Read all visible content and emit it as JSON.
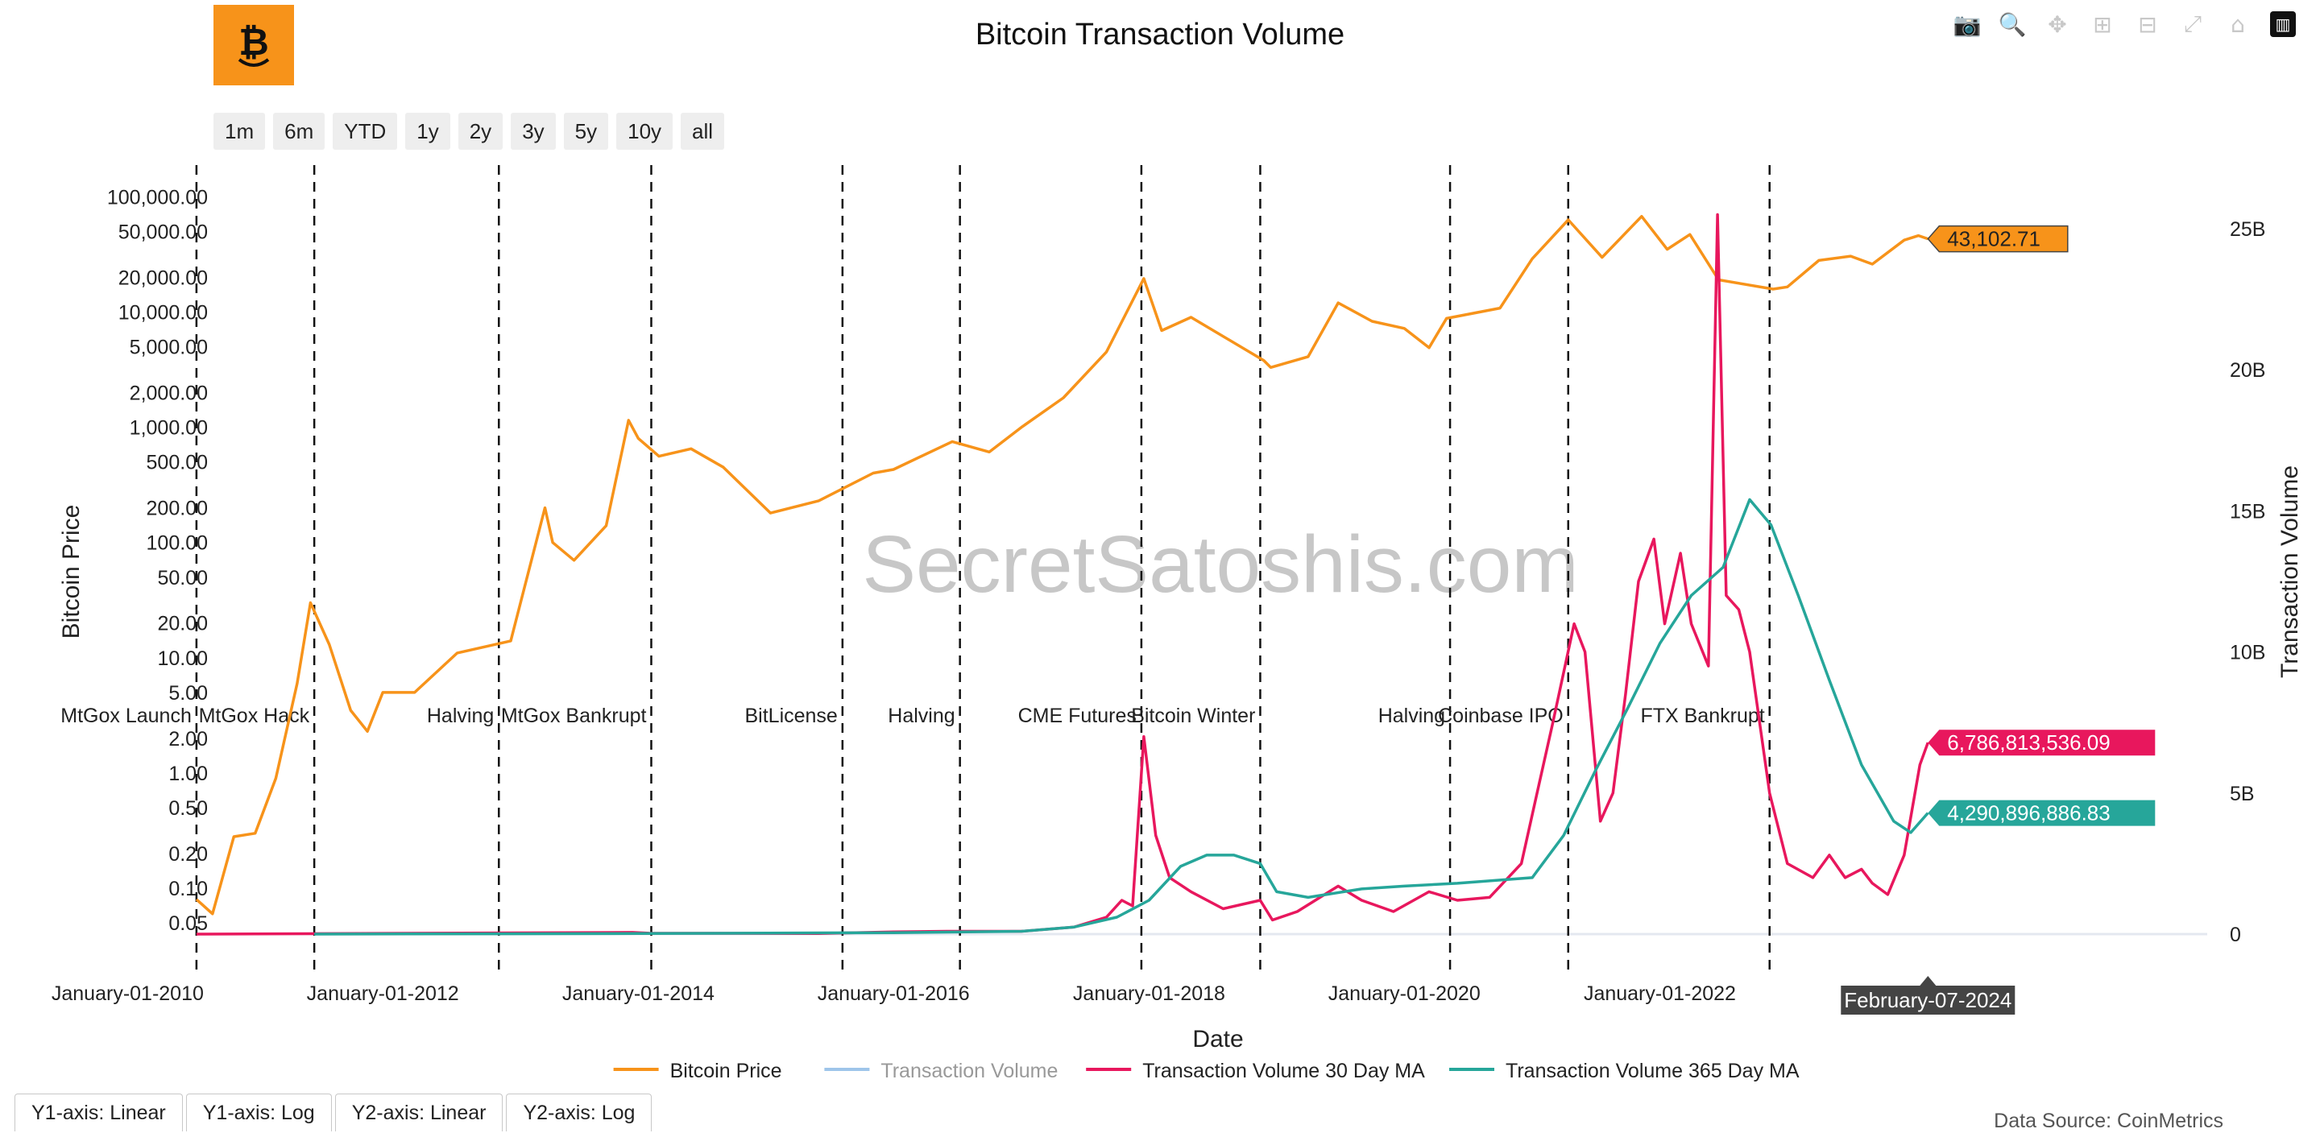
{
  "title": "Bitcoin Transaction Volume",
  "logo": {
    "icon": "bitcoin-face-icon",
    "color": "#f7931a"
  },
  "toolbar": {
    "icons": [
      "camera-icon",
      "zoom-icon",
      "pan-icon",
      "zoom-in-icon",
      "zoom-out-icon",
      "autoscale-icon",
      "reset-axes-icon",
      "plotly-logo-icon"
    ]
  },
  "range_buttons": [
    "1m",
    "6m",
    "YTD",
    "1y",
    "2y",
    "3y",
    "5y",
    "10y",
    "all"
  ],
  "axis_tabs": [
    "Y1-axis: Linear",
    "Y1-axis: Log",
    "Y2-axis: Linear",
    "Y2-axis: Log"
  ],
  "data_source": "Data Source: CoinMetrics",
  "watermark": "SecretSatoshis.com",
  "chart_data": {
    "type": "line",
    "xlabel": "Date",
    "ylabel": "Bitcoin Price",
    "y2label": "Transaction Volume",
    "x_range": [
      "2009-01-01",
      "2026-06-01"
    ],
    "x_ticks": [
      "January-01-2010",
      "January-01-2012",
      "January-01-2014",
      "January-01-2016",
      "January-01-2018",
      "January-01-2020",
      "January-01-2022"
    ],
    "y1_scale": "log",
    "y1_range": [
      0.04,
      130000
    ],
    "y1_ticks": [
      "100,000.00",
      "50,000.00",
      "20,000.00",
      "10,000.00",
      "5,000.00",
      "2,000.00",
      "1,000.00",
      "500.00",
      "200.00",
      "100.00",
      "50.00",
      "20.00",
      "10.00",
      "5.00",
      "2.00",
      "1.00",
      "0.50",
      "0.20",
      "0.10",
      "0.05"
    ],
    "y2_scale": "linear",
    "y2_range": [
      0,
      25000000000
    ],
    "y2_ticks": [
      "25B",
      "20B",
      "15B",
      "10B",
      "5B",
      "0"
    ],
    "events": [
      {
        "date": "2010-07-17",
        "label": "MtGox Launch"
      },
      {
        "date": "2011-06-19",
        "label": "MtGox Hack"
      },
      {
        "date": "2012-11-28",
        "label": "Halving"
      },
      {
        "date": "2014-02-07",
        "label": "MtGox Bankrupt"
      },
      {
        "date": "2015-08-08",
        "label": "BitLicense"
      },
      {
        "date": "2016-07-09",
        "label": "Halving"
      },
      {
        "date": "2017-12-10",
        "label": "CME Futures"
      },
      {
        "date": "2018-11-15",
        "label": "Bitcoin Winter"
      },
      {
        "date": "2020-05-11",
        "label": "Halving"
      },
      {
        "date": "2021-04-14",
        "label": "Coinbase IPO"
      },
      {
        "date": "2022-11-11",
        "label": "FTX Bankrupt"
      }
    ],
    "series": [
      {
        "name": "Bitcoin Price",
        "axis": "y1",
        "color": "#f7931a",
        "points": [
          [
            "2010-07-17",
            0.08
          ],
          [
            "2010-09-01",
            0.06
          ],
          [
            "2010-11-01",
            0.28
          ],
          [
            "2011-01-01",
            0.3
          ],
          [
            "2011-03-01",
            0.9
          ],
          [
            "2011-05-01",
            6
          ],
          [
            "2011-06-08",
            30
          ],
          [
            "2011-08-01",
            13
          ],
          [
            "2011-10-01",
            3.5
          ],
          [
            "2011-11-18",
            2.3
          ],
          [
            "2012-01-01",
            5
          ],
          [
            "2012-04-01",
            5
          ],
          [
            "2012-08-01",
            11
          ],
          [
            "2013-01-01",
            14
          ],
          [
            "2013-04-09",
            200
          ],
          [
            "2013-05-01",
            100
          ],
          [
            "2013-07-01",
            70
          ],
          [
            "2013-10-01",
            140
          ],
          [
            "2013-12-04",
            1150
          ],
          [
            "2014-01-01",
            800
          ],
          [
            "2014-03-01",
            560
          ],
          [
            "2014-06-01",
            650
          ],
          [
            "2014-09-01",
            450
          ],
          [
            "2015-01-14",
            180
          ],
          [
            "2015-06-01",
            230
          ],
          [
            "2015-11-04",
            400
          ],
          [
            "2016-01-01",
            430
          ],
          [
            "2016-06-17",
            750
          ],
          [
            "2016-10-01",
            610
          ],
          [
            "2017-01-01",
            1000
          ],
          [
            "2017-05-01",
            1800
          ],
          [
            "2017-09-01",
            4500
          ],
          [
            "2017-12-17",
            19500
          ],
          [
            "2018-02-06",
            6900
          ],
          [
            "2018-05-01",
            9000
          ],
          [
            "2018-11-25",
            3800
          ],
          [
            "2018-12-15",
            3300
          ],
          [
            "2019-04-01",
            4100
          ],
          [
            "2019-06-26",
            12000
          ],
          [
            "2019-10-01",
            8300
          ],
          [
            "2020-01-01",
            7200
          ],
          [
            "2020-03-12",
            4900
          ],
          [
            "2020-05-01",
            8800
          ],
          [
            "2020-10-01",
            10800
          ],
          [
            "2021-01-01",
            29000
          ],
          [
            "2021-04-14",
            63000
          ],
          [
            "2021-07-20",
            29800
          ],
          [
            "2021-11-10",
            67500
          ],
          [
            "2022-01-22",
            35000
          ],
          [
            "2022-03-28",
            47000
          ],
          [
            "2022-06-18",
            19000
          ],
          [
            "2022-11-21",
            15800
          ],
          [
            "2023-01-01",
            16500
          ],
          [
            "2023-04-01",
            28000
          ],
          [
            "2023-07-01",
            30500
          ],
          [
            "2023-09-01",
            26000
          ],
          [
            "2023-12-01",
            42000
          ],
          [
            "2024-01-11",
            46000
          ],
          [
            "2024-02-07",
            43102.71
          ]
        ],
        "last_value": "43,102.71"
      },
      {
        "name": "Transaction Volume",
        "axis": "y2",
        "color": "#9ec5ea",
        "visible": false
      },
      {
        "name": "Transaction Volume 30 Day MA",
        "axis": "y2",
        "color": "#e8175d",
        "points": [
          [
            "2010-07-17",
            0
          ],
          [
            "2013-12-15",
            60000000.0
          ],
          [
            "2014-02-01",
            30000000.0
          ],
          [
            "2015-06-01",
            20000000.0
          ],
          [
            "2016-01-01",
            80000000.0
          ],
          [
            "2016-06-01",
            100000000.0
          ],
          [
            "2017-01-01",
            100000000.0
          ],
          [
            "2017-06-01",
            250000000.0
          ],
          [
            "2017-09-01",
            600000000.0
          ],
          [
            "2017-10-15",
            1200000000.0
          ],
          [
            "2017-11-15",
            1000000000.0
          ],
          [
            "2017-12-17",
            7000000000.0
          ],
          [
            "2018-01-20",
            3500000000.0
          ],
          [
            "2018-03-01",
            2000000000.0
          ],
          [
            "2018-05-01",
            1500000000.0
          ],
          [
            "2018-08-01",
            900000000.0
          ],
          [
            "2018-11-15",
            1200000000.0
          ],
          [
            "2018-12-20",
            500000000.0
          ],
          [
            "2019-03-01",
            800000000.0
          ],
          [
            "2019-06-26",
            1700000000.0
          ],
          [
            "2019-09-01",
            1200000000.0
          ],
          [
            "2019-12-01",
            800000000.0
          ],
          [
            "2020-03-12",
            1500000000.0
          ],
          [
            "2020-06-01",
            1200000000.0
          ],
          [
            "2020-09-01",
            1300000000.0
          ],
          [
            "2020-12-01",
            2500000000.0
          ],
          [
            "2021-01-15",
            5000000000.0
          ],
          [
            "2021-03-01",
            7500000000.0
          ],
          [
            "2021-05-01",
            11000000000.0
          ],
          [
            "2021-06-01",
            10000000000.0
          ],
          [
            "2021-07-15",
            4000000000.0
          ],
          [
            "2021-08-20",
            5000000000.0
          ],
          [
            "2021-09-25",
            8500000000.0
          ],
          [
            "2021-11-01",
            12500000000.0
          ],
          [
            "2021-12-15",
            14000000000.0
          ],
          [
            "2022-01-15",
            11000000000.0
          ],
          [
            "2022-03-01",
            13500000000.0
          ],
          [
            "2022-04-01",
            11000000000.0
          ],
          [
            "2022-05-20",
            9500000000.0
          ],
          [
            "2022-06-15",
            25500000000.0
          ],
          [
            "2022-07-10",
            12000000000.0
          ],
          [
            "2022-08-15",
            11500000000.0
          ],
          [
            "2022-09-15",
            10000000000.0
          ],
          [
            "2022-11-11",
            5000000000.0
          ],
          [
            "2023-01-01",
            2500000000.0
          ],
          [
            "2023-03-15",
            2000000000.0
          ],
          [
            "2023-05-01",
            2800000000.0
          ],
          [
            "2023-06-15",
            2000000000.0
          ],
          [
            "2023-08-01",
            2300000000.0
          ],
          [
            "2023-09-01",
            1800000000.0
          ],
          [
            "2023-10-15",
            1400000000.0
          ],
          [
            "2023-12-01",
            2800000000.0
          ],
          [
            "2024-01-15",
            6000000000.0
          ],
          [
            "2024-02-07",
            6786813536.0
          ]
        ],
        "last_value": "6,786,813,536.09"
      },
      {
        "name": "Transaction Volume 365 Day MA",
        "axis": "y2",
        "color": "#26a69a",
        "points": [
          [
            "2011-06-19",
            0
          ],
          [
            "2014-01-01",
            20000000.0
          ],
          [
            "2016-01-01",
            50000000.0
          ],
          [
            "2017-01-01",
            100000000.0
          ],
          [
            "2017-06-01",
            250000000.0
          ],
          [
            "2017-10-01",
            600000000.0
          ],
          [
            "2018-01-01",
            1200000000.0
          ],
          [
            "2018-04-01",
            2400000000.0
          ],
          [
            "2018-06-15",
            2800000000.0
          ],
          [
            "2018-09-01",
            2800000000.0
          ],
          [
            "2018-11-15",
            2500000000.0
          ],
          [
            "2019-01-01",
            1500000000.0
          ],
          [
            "2019-04-01",
            1300000000.0
          ],
          [
            "2019-09-01",
            1600000000.0
          ],
          [
            "2020-01-01",
            1700000000.0
          ],
          [
            "2020-06-01",
            1800000000.0
          ],
          [
            "2021-01-01",
            2000000000.0
          ],
          [
            "2021-04-01",
            3500000000.0
          ],
          [
            "2021-07-01",
            5800000000.0
          ],
          [
            "2021-10-01",
            8000000000.0
          ],
          [
            "2022-01-01",
            10300000000.0
          ],
          [
            "2022-04-01",
            12000000000.0
          ],
          [
            "2022-07-01",
            13000000000.0
          ],
          [
            "2022-09-15",
            15400000000.0
          ],
          [
            "2022-11-15",
            14500000000.0
          ],
          [
            "2023-02-01",
            12000000000.0
          ],
          [
            "2023-05-01",
            9000000000.0
          ],
          [
            "2023-08-01",
            6000000000.0
          ],
          [
            "2023-11-01",
            4000000000.0
          ],
          [
            "2023-12-20",
            3600000000.0
          ],
          [
            "2024-02-07",
            4290896886.0
          ]
        ],
        "last_value": "4,290,896,886.83"
      }
    ],
    "hover_label": "February-07-2024",
    "grid": false,
    "legend_position": "bottom"
  }
}
